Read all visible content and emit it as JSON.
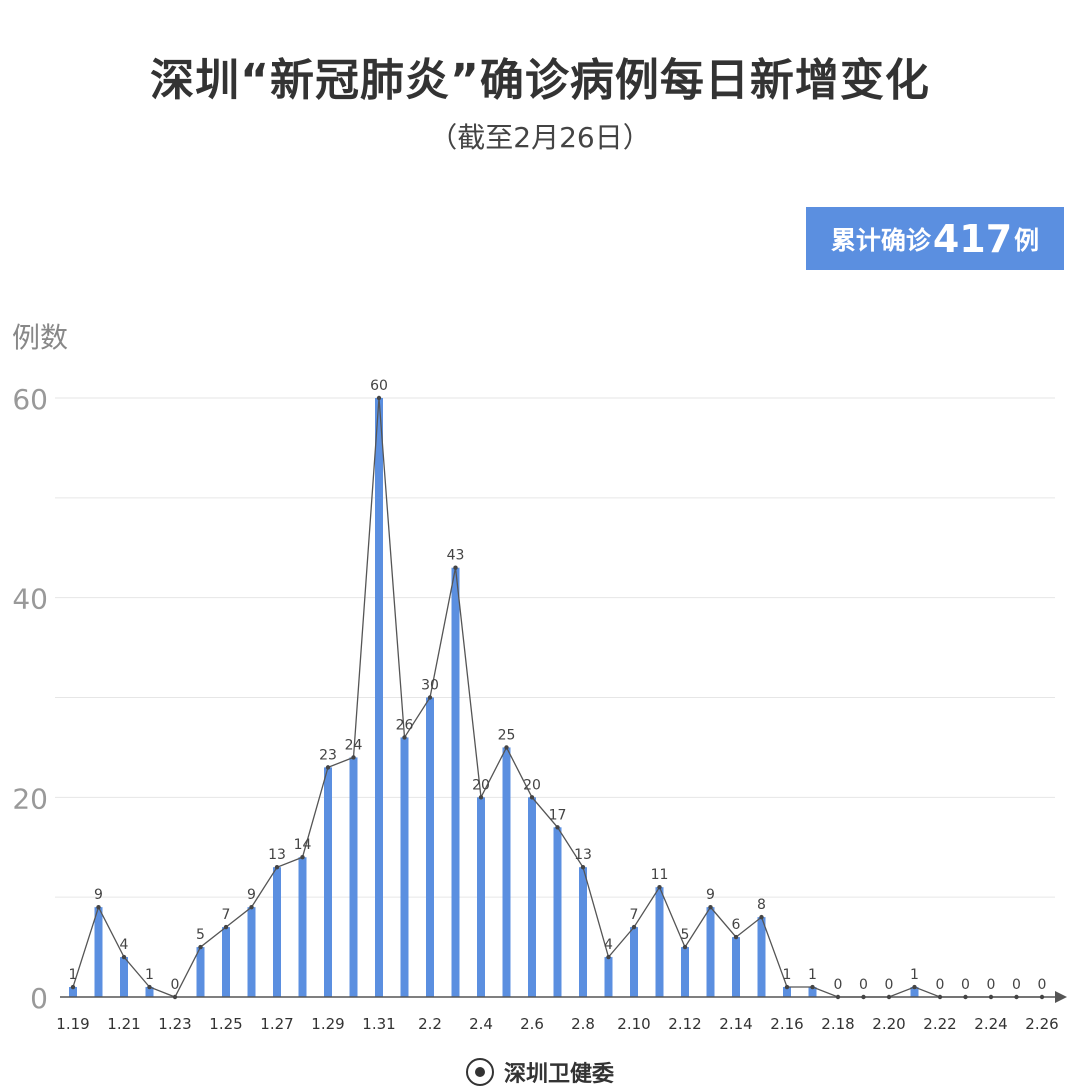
{
  "header": {
    "title": "深圳“新冠肺炎”确诊病例每日新增变化",
    "subtitle": "（截至2月26日）"
  },
  "badge": {
    "prefix": "累计确诊",
    "number": "417",
    "suffix": "例"
  },
  "footer": {
    "source": "深圳卫健委"
  },
  "colors": {
    "bar": "#5b8fe0",
    "line": "#555555",
    "grid": "#e6e6e6",
    "axis": "#555555"
  },
  "chart_data": {
    "type": "bar",
    "ylabel": "例数",
    "ylim": [
      0,
      60
    ],
    "yticks": [
      0,
      20,
      40,
      60
    ],
    "grid": true,
    "categories": [
      "1.19",
      "1.20",
      "1.21",
      "1.22",
      "1.23",
      "1.24",
      "1.25",
      "1.26",
      "1.27",
      "1.28",
      "1.29",
      "1.30",
      "1.31",
      "2.1",
      "2.2",
      "2.3",
      "2.4",
      "2.5",
      "2.6",
      "2.7",
      "2.8",
      "2.9",
      "2.10",
      "2.11",
      "2.12",
      "2.13",
      "2.14",
      "2.15",
      "2.16",
      "2.17",
      "2.18",
      "2.19",
      "2.20",
      "2.21",
      "2.22",
      "2.23",
      "2.24",
      "2.25",
      "2.26"
    ],
    "xtick_labels": [
      "1.19",
      "1.21",
      "1.23",
      "1.25",
      "1.27",
      "1.29",
      "1.31",
      "2.2",
      "2.4",
      "2.6",
      "2.8",
      "2.10",
      "2.12",
      "2.14",
      "2.16",
      "2.18",
      "2.20",
      "2.22",
      "2.24",
      "2.26"
    ],
    "values": [
      1,
      9,
      4,
      1,
      0,
      5,
      7,
      9,
      13,
      14,
      23,
      24,
      60,
      26,
      30,
      43,
      20,
      25,
      20,
      17,
      13,
      4,
      7,
      11,
      5,
      9,
      6,
      8,
      1,
      1,
      0,
      0,
      0,
      1,
      0,
      0,
      0,
      0,
      0
    ],
    "overlay_line": true
  }
}
